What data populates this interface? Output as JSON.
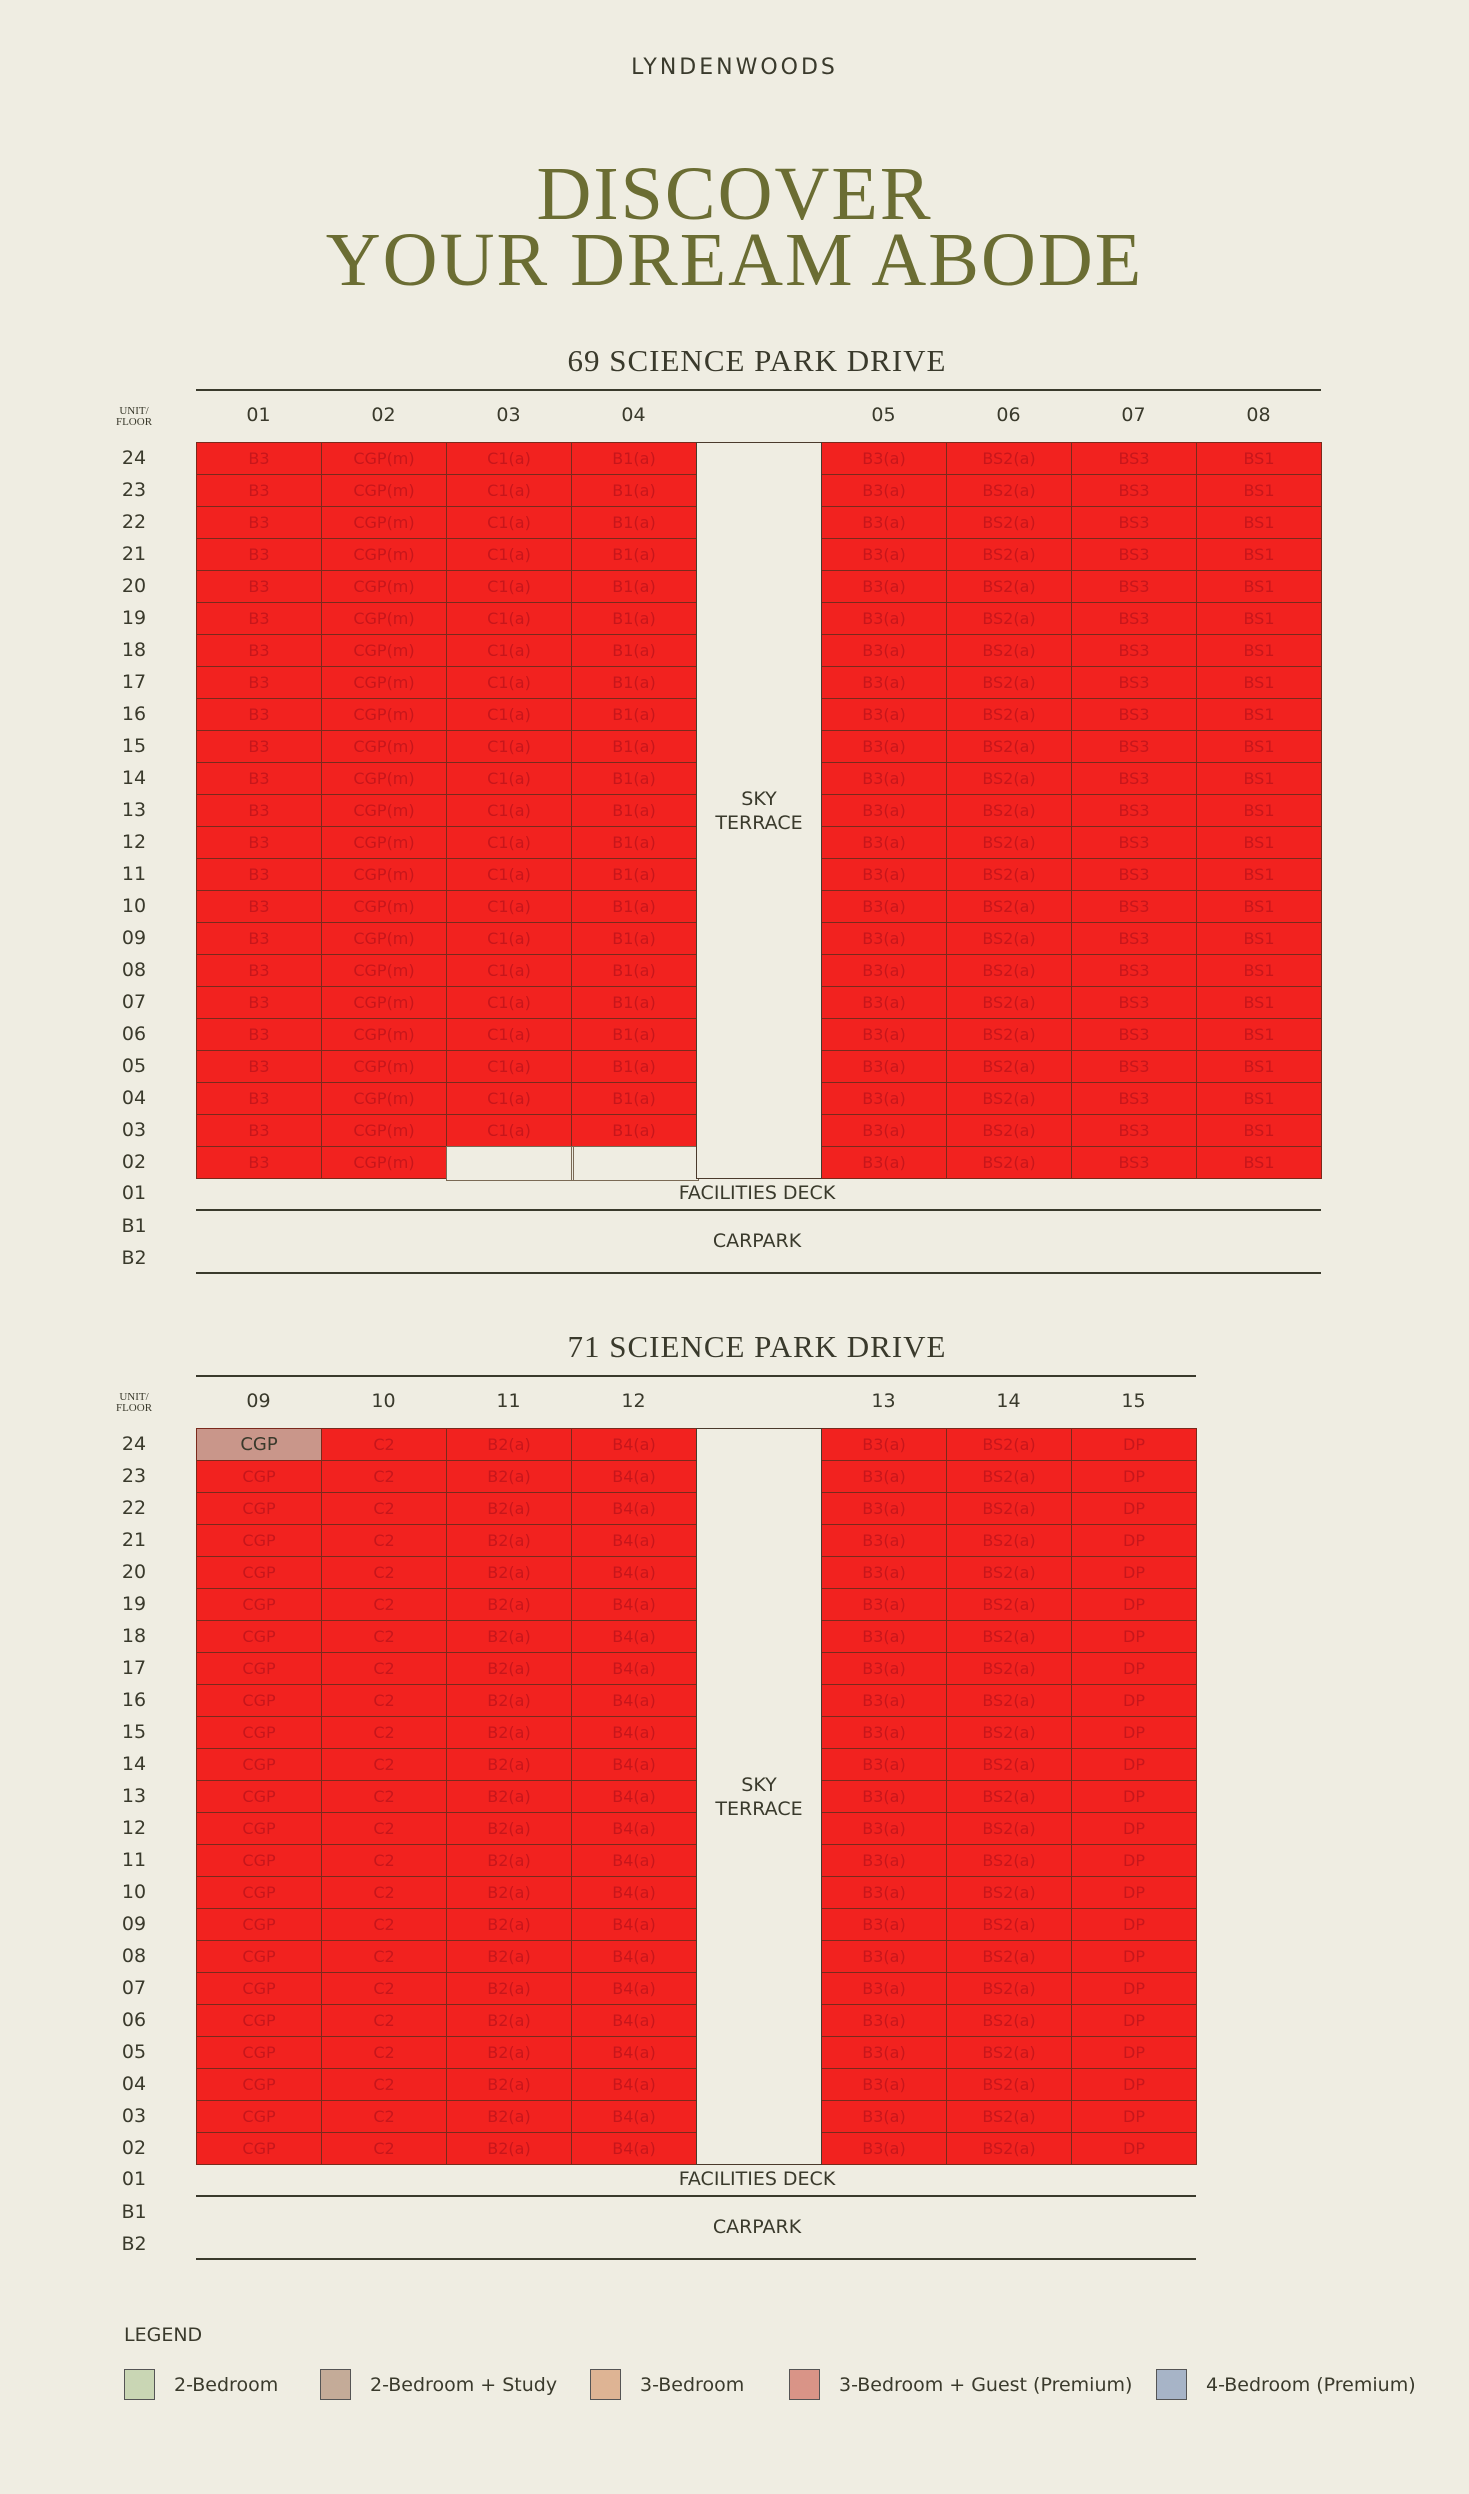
{
  "header": {
    "brand": "LYNDENWOODS",
    "title_lines": [
      "DISCOVER",
      "YOUR DREAM ABODE"
    ]
  },
  "unit_floor_label": "UNIT/ FLOOR",
  "sold_color": "#f2221f",
  "buildings": [
    {
      "title": "69 SCIENCE PARK DRIVE",
      "columns": [
        "01",
        "02",
        "03",
        "04",
        "05",
        "06",
        "07",
        "08"
      ],
      "floors": [
        "24",
        "23",
        "22",
        "21",
        "20",
        "19",
        "18",
        "17",
        "16",
        "15",
        "14",
        "13",
        "12",
        "11",
        "10",
        "09",
        "08",
        "07",
        "06",
        "05",
        "04",
        "03",
        "02"
      ],
      "rows": [
        [
          "B3",
          "CGP(m)",
          "C1(a)",
          "B1(a)",
          "B3(a)",
          "BS2(a)",
          "BS3",
          "BS1"
        ],
        [
          "B3",
          "CGP(m)",
          "C1(a)",
          "B1(a)",
          "B3(a)",
          "BS2(a)",
          "BS3",
          "BS1"
        ],
        [
          "B3",
          "CGP(m)",
          "C1(a)",
          "B1(a)",
          "B3(a)",
          "BS2(a)",
          "BS3",
          "BS1"
        ],
        [
          "B3",
          "CGP(m)",
          "C1(a)",
          "B1(a)",
          "B3(a)",
          "BS2(a)",
          "BS3",
          "BS1"
        ],
        [
          "B3",
          "CGP(m)",
          "C1(a)",
          "B1(a)",
          "B3(a)",
          "BS2(a)",
          "BS3",
          "BS1"
        ],
        [
          "B3",
          "CGP(m)",
          "C1(a)",
          "B1(a)",
          "B3(a)",
          "BS2(a)",
          "BS3",
          "BS1"
        ],
        [
          "B3",
          "CGP(m)",
          "C1(a)",
          "B1(a)",
          "B3(a)",
          "BS2(a)",
          "BS3",
          "BS1"
        ],
        [
          "B3",
          "CGP(m)",
          "C1(a)",
          "B1(a)",
          "B3(a)",
          "BS2(a)",
          "BS3",
          "BS1"
        ],
        [
          "B3",
          "CGP(m)",
          "C1(a)",
          "B1(a)",
          "B3(a)",
          "BS2(a)",
          "BS3",
          "BS1"
        ],
        [
          "B3",
          "CGP(m)",
          "C1(a)",
          "B1(a)",
          "B3(a)",
          "BS2(a)",
          "BS3",
          "BS1"
        ],
        [
          "B3",
          "CGP(m)",
          "C1(a)",
          "B1(a)",
          "B3(a)",
          "BS2(a)",
          "BS3",
          "BS1"
        ],
        [
          "B3",
          "CGP(m)",
          "C1(a)",
          "B1(a)",
          "B3(a)",
          "BS2(a)",
          "BS3",
          "BS1"
        ],
        [
          "B3",
          "CGP(m)",
          "C1(a)",
          "B1(a)",
          "B3(a)",
          "BS2(a)",
          "BS3",
          "BS1"
        ],
        [
          "B3",
          "CGP(m)",
          "C1(a)",
          "B1(a)",
          "B3(a)",
          "BS2(a)",
          "BS3",
          "BS1"
        ],
        [
          "B3",
          "CGP(m)",
          "C1(a)",
          "B1(a)",
          "B3(a)",
          "BS2(a)",
          "BS3",
          "BS1"
        ],
        [
          "B3",
          "CGP(m)",
          "C1(a)",
          "B1(a)",
          "B3(a)",
          "BS2(a)",
          "BS3",
          "BS1"
        ],
        [
          "B3",
          "CGP(m)",
          "C1(a)",
          "B1(a)",
          "B3(a)",
          "BS2(a)",
          "BS3",
          "BS1"
        ],
        [
          "B3",
          "CGP(m)",
          "C1(a)",
          "B1(a)",
          "B3(a)",
          "BS2(a)",
          "BS3",
          "BS1"
        ],
        [
          "B3",
          "CGP(m)",
          "C1(a)",
          "B1(a)",
          "B3(a)",
          "BS2(a)",
          "BS3",
          "BS1"
        ],
        [
          "B3",
          "CGP(m)",
          "C1(a)",
          "B1(a)",
          "B3(a)",
          "BS2(a)",
          "BS3",
          "BS1"
        ],
        [
          "B3",
          "CGP(m)",
          "C1(a)",
          "B1(a)",
          "B3(a)",
          "BS2(a)",
          "BS3",
          "BS1"
        ],
        [
          "B3",
          "CGP(m)",
          "C1(a)",
          "B1(a)",
          "B3(a)",
          "BS2(a)",
          "BS3",
          "BS1"
        ],
        [
          "B3",
          "CGP(m)",
          null,
          null,
          "B3(a)",
          "BS2(a)",
          "BS3",
          "BS1"
        ]
      ],
      "sky_terrace": "SKY TERRACE",
      "lower_floors": [
        "01",
        "B1",
        "B2"
      ],
      "facilities_deck": "FACILITIES DECK",
      "carpark": "CARPARK"
    },
    {
      "title": "71 SCIENCE PARK DRIVE",
      "columns": [
        "09",
        "10",
        "11",
        "12",
        "13",
        "14",
        "15"
      ],
      "floors": [
        "24",
        "23",
        "22",
        "21",
        "20",
        "19",
        "18",
        "17",
        "16",
        "15",
        "14",
        "13",
        "12",
        "11",
        "10",
        "09",
        "08",
        "07",
        "06",
        "05",
        "04",
        "03",
        "02"
      ],
      "rows": [
        [
          {
            "label": "CGP",
            "color": "#c9968a"
          },
          "C2",
          "B2(a)",
          "B4(a)",
          "B3(a)",
          "BS2(a)",
          "DP"
        ],
        [
          "CGP",
          "C2",
          "B2(a)",
          "B4(a)",
          "B3(a)",
          "BS2(a)",
          "DP"
        ],
        [
          "CGP",
          "C2",
          "B2(a)",
          "B4(a)",
          "B3(a)",
          "BS2(a)",
          "DP"
        ],
        [
          "CGP",
          "C2",
          "B2(a)",
          "B4(a)",
          "B3(a)",
          "BS2(a)",
          "DP"
        ],
        [
          "CGP",
          "C2",
          "B2(a)",
          "B4(a)",
          "B3(a)",
          "BS2(a)",
          "DP"
        ],
        [
          "CGP",
          "C2",
          "B2(a)",
          "B4(a)",
          "B3(a)",
          "BS2(a)",
          "DP"
        ],
        [
          "CGP",
          "C2",
          "B2(a)",
          "B4(a)",
          "B3(a)",
          "BS2(a)",
          "DP"
        ],
        [
          "CGP",
          "C2",
          "B2(a)",
          "B4(a)",
          "B3(a)",
          "BS2(a)",
          "DP"
        ],
        [
          "CGP",
          "C2",
          "B2(a)",
          "B4(a)",
          "B3(a)",
          "BS2(a)",
          "DP"
        ],
        [
          "CGP",
          "C2",
          "B2(a)",
          "B4(a)",
          "B3(a)",
          "BS2(a)",
          "DP"
        ],
        [
          "CGP",
          "C2",
          "B2(a)",
          "B4(a)",
          "B3(a)",
          "BS2(a)",
          "DP"
        ],
        [
          "CGP",
          "C2",
          "B2(a)",
          "B4(a)",
          "B3(a)",
          "BS2(a)",
          "DP"
        ],
        [
          "CGP",
          "C2",
          "B2(a)",
          "B4(a)",
          "B3(a)",
          "BS2(a)",
          "DP"
        ],
        [
          "CGP",
          "C2",
          "B2(a)",
          "B4(a)",
          "B3(a)",
          "BS2(a)",
          "DP"
        ],
        [
          "CGP",
          "C2",
          "B2(a)",
          "B4(a)",
          "B3(a)",
          "BS2(a)",
          "DP"
        ],
        [
          "CGP",
          "C2",
          "B2(a)",
          "B4(a)",
          "B3(a)",
          "BS2(a)",
          "DP"
        ],
        [
          "CGP",
          "C2",
          "B2(a)",
          "B4(a)",
          "B3(a)",
          "BS2(a)",
          "DP"
        ],
        [
          "CGP",
          "C2",
          "B2(a)",
          "B4(a)",
          "B3(a)",
          "BS2(a)",
          "DP"
        ],
        [
          "CGP",
          "C2",
          "B2(a)",
          "B4(a)",
          "B3(a)",
          "BS2(a)",
          "DP"
        ],
        [
          "CGP",
          "C2",
          "B2(a)",
          "B4(a)",
          "B3(a)",
          "BS2(a)",
          "DP"
        ],
        [
          "CGP",
          "C2",
          "B2(a)",
          "B4(a)",
          "B3(a)",
          "BS2(a)",
          "DP"
        ],
        [
          "CGP",
          "C2",
          "B2(a)",
          "B4(a)",
          "B3(a)",
          "BS2(a)",
          "DP"
        ],
        [
          "CGP",
          "C2",
          "B2(a)",
          "B4(a)",
          "B3(a)",
          "BS2(a)",
          "DP"
        ]
      ],
      "sky_terrace": "SKY TERRACE",
      "lower_floors": [
        "01",
        "B1",
        "B2"
      ],
      "facilities_deck": "FACILITIES DECK",
      "carpark": "CARPARK"
    }
  ],
  "legend": {
    "title": "LEGEND",
    "items": [
      {
        "name": "2-Bedroom",
        "color": "#c9d6b4"
      },
      {
        "name": "2-Bedroom + Study",
        "color": "#c4ab98"
      },
      {
        "name": "3-Bedroom",
        "color": "#deb494"
      },
      {
        "name": "3-Bedroom + Guest (Premium)",
        "color": "#d99487"
      },
      {
        "name": "4-Bedroom (Premium)",
        "color": "#a7b4c7"
      }
    ]
  }
}
